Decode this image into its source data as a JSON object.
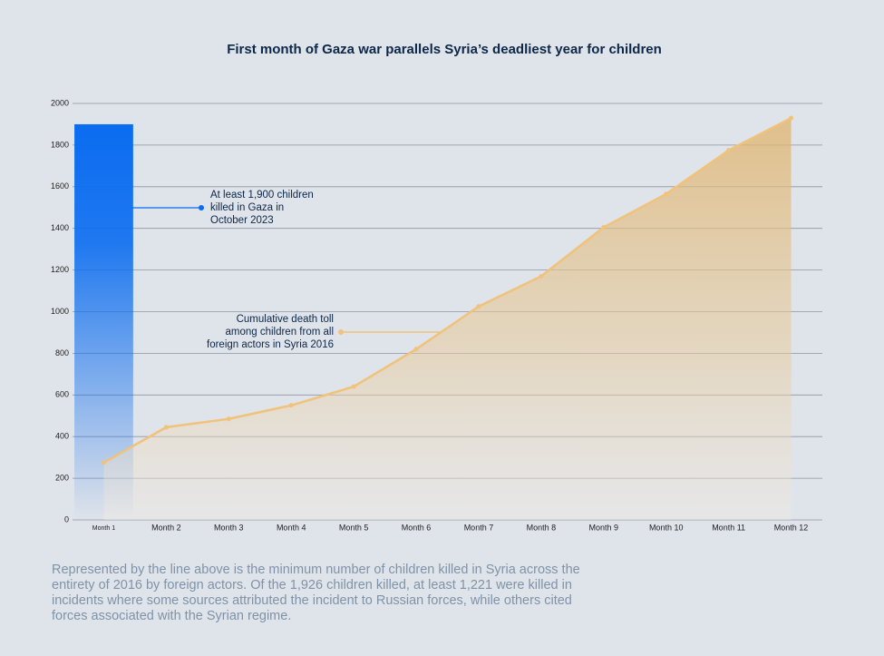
{
  "chart_data": {
    "type": "combo",
    "title": "First month of Gaza war parallels Syria’s deadliest year for children",
    "categories": [
      "Month 1",
      "Month 2",
      "Month 3",
      "Month 4",
      "Month 5",
      "Month 6",
      "Month 7",
      "Month 8",
      "Month 9",
      "Month 10",
      "Month 11",
      "Month 12"
    ],
    "series": [
      {
        "type": "bar",
        "color": "#0a6cf0",
        "values": [
          1900,
          null,
          null,
          null,
          null,
          null,
          null,
          null,
          null,
          null,
          null,
          null
        ]
      },
      {
        "type": "line",
        "color": "#f0c27a",
        "values": [
          275,
          445,
          485,
          550,
          640,
          820,
          1025,
          1170,
          1405,
          1565,
          1775,
          1930
        ]
      }
    ],
    "ylim": [
      0,
      2000
    ],
    "yticks": [
      0,
      200,
      400,
      600,
      800,
      1000,
      1200,
      1400,
      1600,
      1800,
      2000
    ],
    "grid": true,
    "annotations": [
      {
        "lines": [
          "At least 1,900 children",
          "killed in Gaza in",
          "October 2023"
        ]
      },
      {
        "lines": [
          "Cumulative death toll",
          "among children from all",
          "foreign actors in Syria 2016"
        ]
      }
    ],
    "footnote": "Represented by the line above is the minimum number of children killed in Syria across the entirety of 2016 by foreign actors. Of the 1,926 children killed, at least 1,221 were killed in incidents where some sources attributed the incident to Russian forces, while others cited forces associated with the Syrian regime."
  }
}
